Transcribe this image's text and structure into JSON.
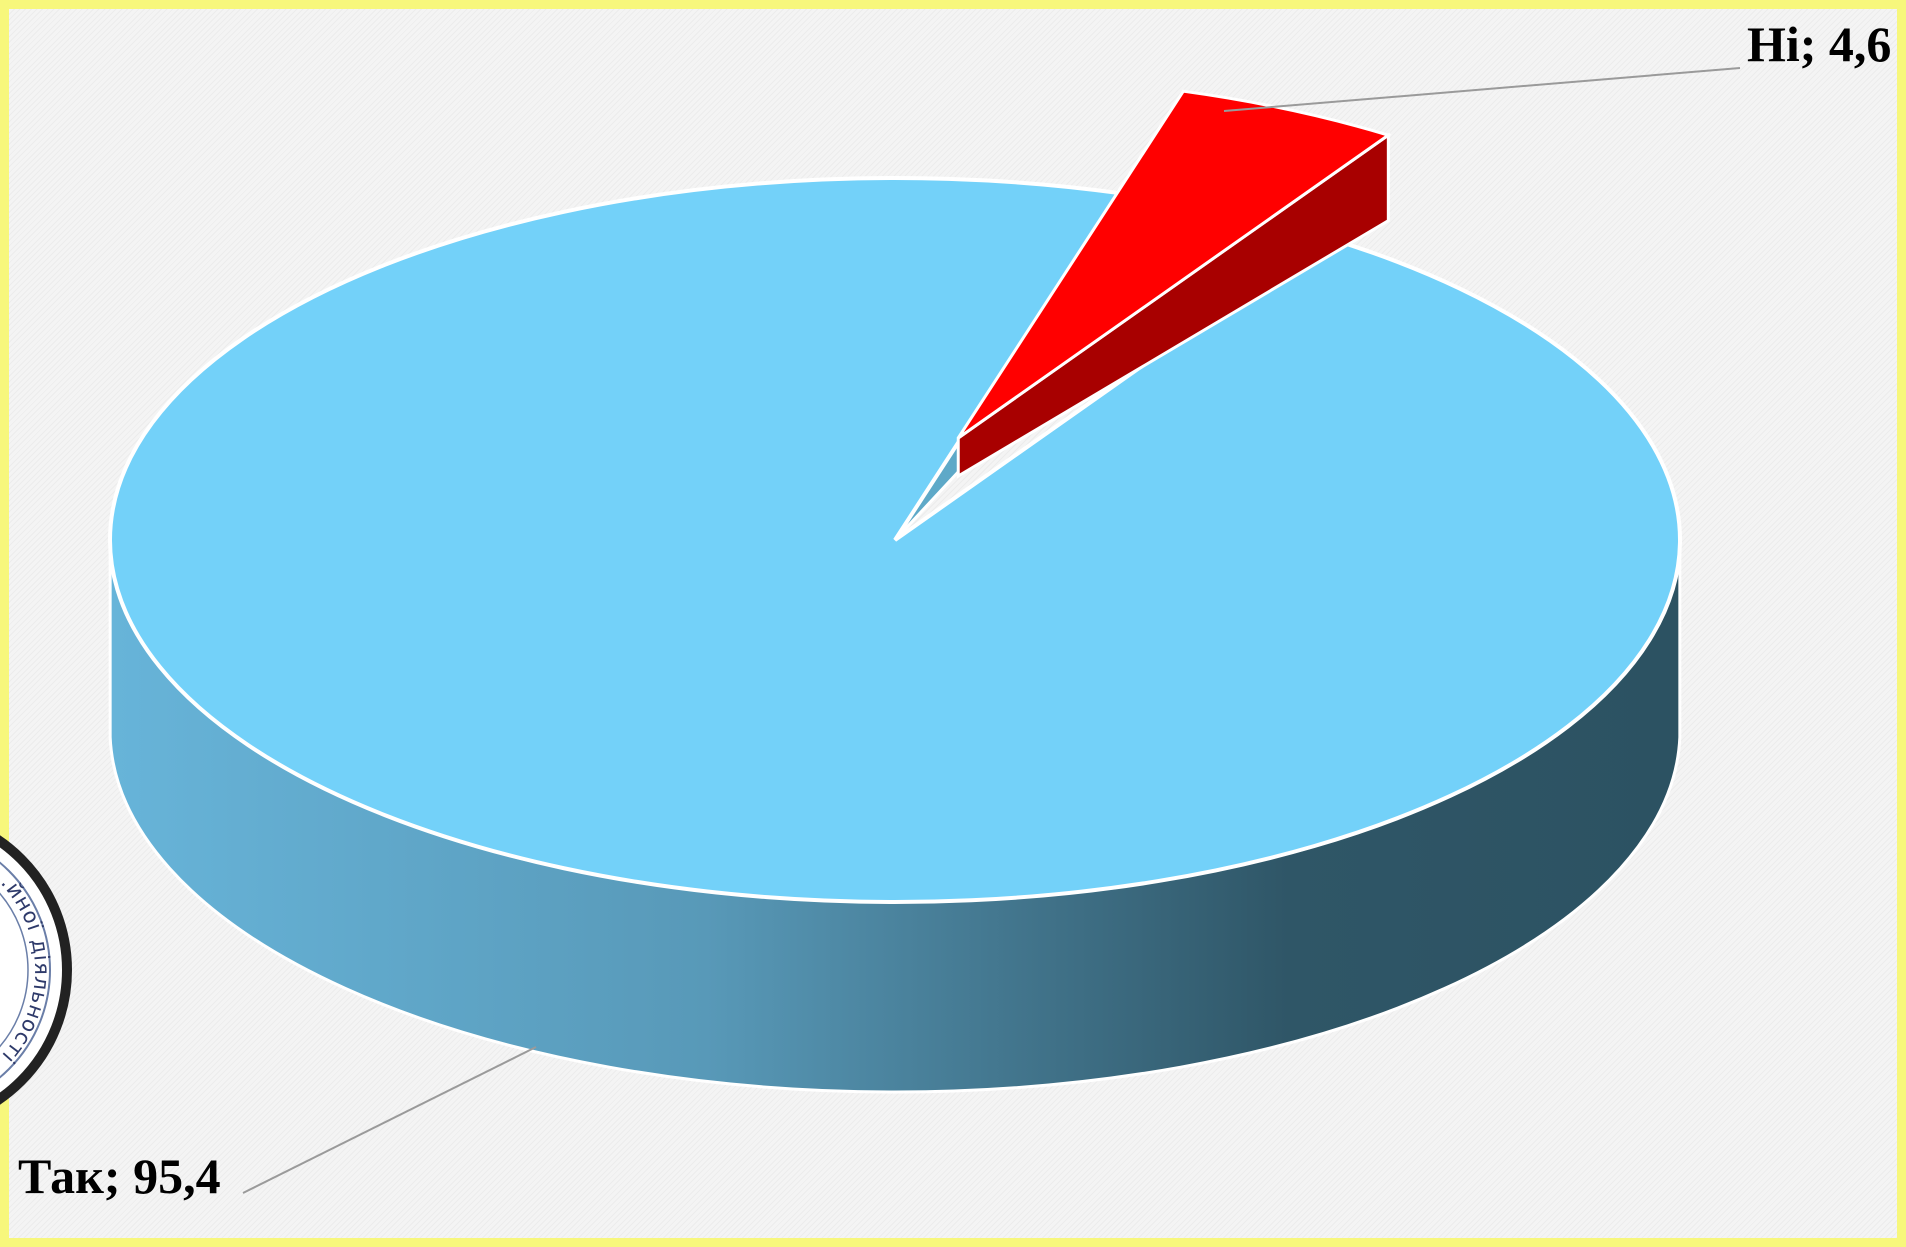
{
  "chart_data": {
    "type": "pie",
    "style": "3d",
    "title": "",
    "series": [
      {
        "categories": [
          "Так",
          "Ні"
        ],
        "values": [
          95.4,
          4.6
        ]
      }
    ],
    "data_labels": [
      "Так; 95,4",
      "Ні; 4,6"
    ],
    "exploded": [
      "Ні"
    ],
    "colors": {
      "Так": "#73d1f9",
      "Так_side_light": "#67b4d9",
      "Так_side_dark": "#2f5667",
      "Ні": "#ff0000",
      "Ні_side": "#a80000",
      "border": "#f7f77c"
    }
  },
  "seal": {
    "visible_text": "…йної діяльності"
  }
}
